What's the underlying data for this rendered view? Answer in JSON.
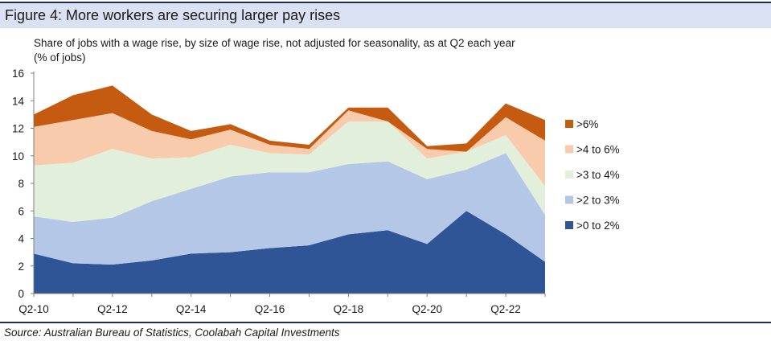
{
  "title": "Figure 4: More workers are securing larger pay rises",
  "subtitle_line1": "Share of jobs with a wage rise, by size of wage rise, not adjusted for seasonality, as at Q2 each year",
  "subtitle_line2": "(% of jobs)",
  "source": "Source: Australian Bureau of Statistics, Coolabah Capital Investments",
  "colors": {
    "s0": "#2f5597",
    "s1": "#b4c7e7",
    "s2": "#e2efda",
    "s3": "#f8cbad",
    "s4": "#c55a11"
  },
  "chart_data": {
    "type": "area",
    "stacked": true,
    "x": [
      "Q2-10",
      "Q2-11",
      "Q2-12",
      "Q2-13",
      "Q2-14",
      "Q2-15",
      "Q2-16",
      "Q2-17",
      "Q2-18",
      "Q2-19",
      "Q2-20",
      "Q2-21",
      "Q2-22",
      "Q2-23"
    ],
    "xticklabels": [
      "Q2-10",
      "Q2-12",
      "Q2-14",
      "Q2-16",
      "Q2-18",
      "Q2-20",
      "Q2-22"
    ],
    "yticks": [
      0,
      2,
      4,
      6,
      8,
      10,
      12,
      14,
      16
    ],
    "ylim": [
      0,
      16
    ],
    "xlabel": "",
    "ylabel": "",
    "legend_position": "right",
    "series": [
      {
        "name": ">0 to 2%",
        "values": [
          2.9,
          2.2,
          2.1,
          2.4,
          2.9,
          3.0,
          3.3,
          3.5,
          4.3,
          4.6,
          3.6,
          6.0,
          4.3,
          2.3
        ]
      },
      {
        "name": ">2 to 3%",
        "values": [
          2.7,
          3.0,
          3.4,
          4.3,
          4.7,
          5.5,
          5.5,
          5.3,
          5.1,
          5.0,
          4.7,
          3.0,
          5.9,
          3.4
        ]
      },
      {
        "name": ">3 to 4%",
        "values": [
          3.7,
          4.3,
          5.0,
          3.1,
          2.3,
          2.3,
          1.4,
          1.3,
          3.1,
          2.9,
          1.5,
          1.3,
          1.3,
          2.1
        ]
      },
      {
        "name": ">4 to 6%",
        "values": [
          2.8,
          3.1,
          2.6,
          2.0,
          1.3,
          1.1,
          0.6,
          0.4,
          0.8,
          0.0,
          0.7,
          0.0,
          1.3,
          3.3
        ]
      },
      {
        "name": ">6%",
        "values": [
          0.9,
          1.8,
          2.0,
          1.2,
          0.6,
          0.4,
          0.3,
          0.3,
          0.2,
          1.0,
          0.2,
          0.6,
          1.0,
          1.5
        ]
      }
    ]
  }
}
